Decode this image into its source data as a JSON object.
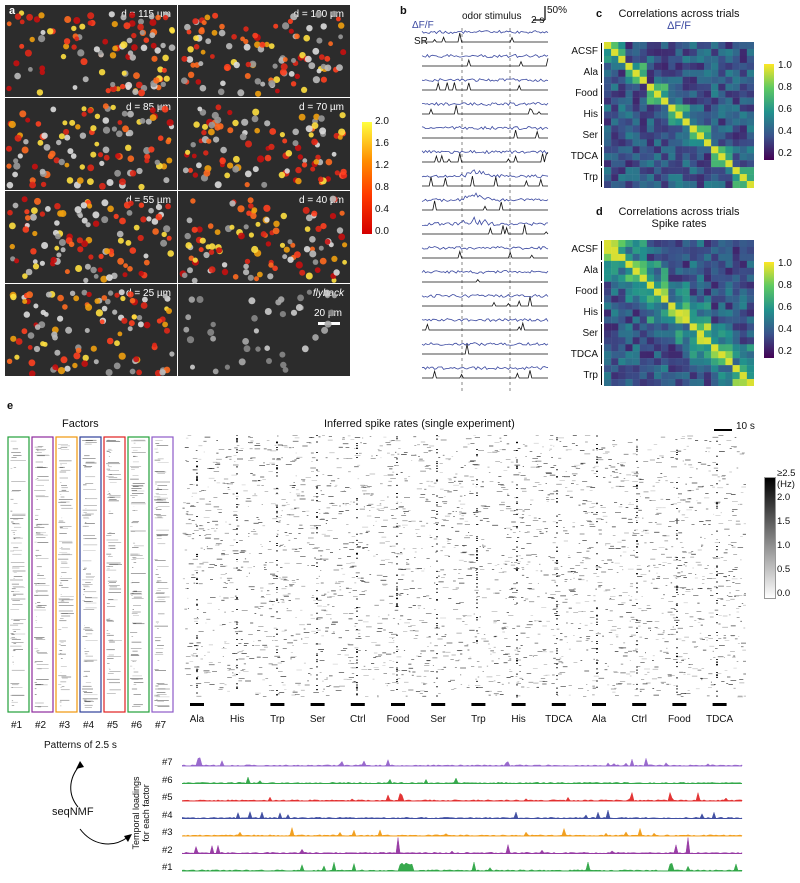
{
  "panel_a": {
    "label": "a",
    "tiles": [
      {
        "label": "d = 115 µm"
      },
      {
        "label": "d = 100 µm"
      },
      {
        "label": "d = 85 µm"
      },
      {
        "label": "d = 70 µm"
      },
      {
        "label": "d = 55 µm"
      },
      {
        "label": "d = 40 µm"
      },
      {
        "label": "d = 25 µm"
      },
      {
        "label": "flyback"
      }
    ],
    "scalebar": "20 µm",
    "colorbar_ticks": [
      "2.0",
      "1.6",
      "1.2",
      "0.8",
      "0.4",
      "0.0"
    ]
  },
  "panel_b": {
    "label": "b",
    "df_label": "ΔF/F",
    "sr_label": "SR",
    "stimulus_label": "odor stimulus",
    "scale_y": "50%",
    "scale_x": "2 s"
  },
  "panel_c": {
    "label": "c",
    "title1": "Correlations across trials",
    "title2": "ΔF/F",
    "row_labels": [
      "ACSF",
      "Ala",
      "Food",
      "His",
      "Ser",
      "TDCA",
      "Trp"
    ],
    "colorbar_ticks": [
      "1.0",
      "0.8",
      "0.6",
      "0.4",
      "0.2"
    ]
  },
  "panel_d": {
    "label": "d",
    "title1": "Correlations across trials",
    "title2": "Spike rates",
    "row_labels": [
      "ACSF",
      "Ala",
      "Food",
      "His",
      "Ser",
      "TDCA",
      "Trp"
    ],
    "colorbar_ticks": [
      "1.0",
      "0.8",
      "0.6",
      "0.4",
      "0.2"
    ]
  },
  "panel_e": {
    "label": "e",
    "factors_title": "Factors",
    "factor_labels": [
      "#1",
      "#2",
      "#3",
      "#4",
      "#5",
      "#6",
      "#7"
    ],
    "patterns_label": "Patterns of 2.5 s",
    "raster_title": "Inferred spike rates (single experiment)",
    "scale_x": "10 s",
    "colorbar_ticks": [
      "≥2.5 (Hz)",
      "2.0",
      "1.5",
      "1.0",
      "0.5",
      "0.0"
    ],
    "stimuli": [
      "Ala",
      "His",
      "Trp",
      "Ser",
      "Ctrl",
      "Food",
      "Ser",
      "Trp",
      "His",
      "TDCA",
      "Ala",
      "Ctrl",
      "Food",
      "TDCA"
    ],
    "seqnmf_label": "seqNMF",
    "loadings_ylabel1": "Temporal loadings",
    "loadings_ylabel2": "for each factor",
    "loading_labels": [
      "#7",
      "#6",
      "#5",
      "#4",
      "#3",
      "#2",
      "#1"
    ]
  },
  "colors": {
    "factor1": "#22a03a",
    "factor2": "#8e2a9c",
    "factor3": "#f0960a",
    "factor4": "#2f3f9a",
    "factor5": "#e02020",
    "factor6": "#22a03a",
    "factor7": "#8e5ac8",
    "df_trace": "#3a48a0",
    "sr_trace": "#111111"
  }
}
